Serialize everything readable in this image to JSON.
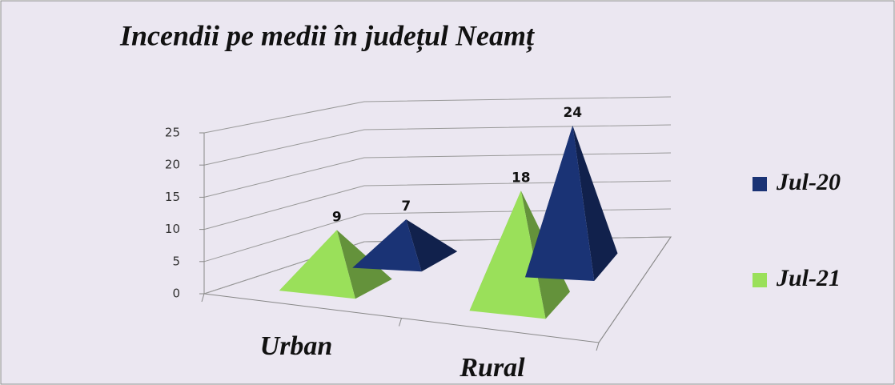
{
  "chart_data": {
    "type": "pyramid3d",
    "title": "Incendii pe medii în județul Neamț",
    "categories": [
      "Urban",
      "Rural"
    ],
    "series": [
      {
        "name": "Jul-20",
        "color": "#1a3375",
        "values": [
          7,
          24
        ]
      },
      {
        "name": "Jul-21",
        "color": "#9ae05a",
        "values": [
          9,
          18
        ]
      }
    ],
    "ylim": [
      0,
      25
    ],
    "yticks": [
      0,
      5,
      10,
      15,
      20,
      25
    ],
    "grid": true,
    "legend": "right"
  }
}
